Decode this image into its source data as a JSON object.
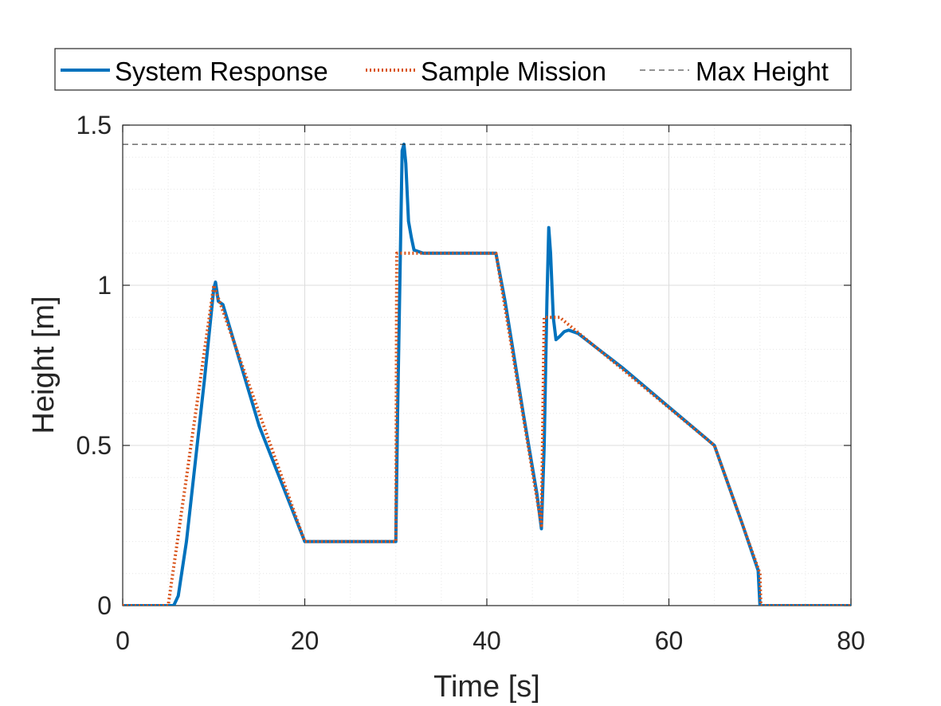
{
  "chart_data": {
    "type": "line",
    "xlabel": "Time [s]",
    "ylabel": "Height [m]",
    "xlim": [
      0,
      80
    ],
    "ylim": [
      0,
      1.5
    ],
    "x_ticks": [
      "0",
      "20",
      "40",
      "60",
      "80"
    ],
    "y_ticks": [
      "0",
      "0.5",
      "1",
      "1.5"
    ],
    "grid": "on (major and minor)",
    "legend_position": "top, outside, horizontal",
    "series": [
      {
        "name": "System Response",
        "style": "solid",
        "color": "#0072BD",
        "x": [
          0,
          5.6,
          6.1,
          7,
          9,
          10,
          10.2,
          10.5,
          11,
          15,
          20,
          25,
          30,
          30.2,
          30.5,
          30.7,
          30.9,
          31.1,
          31.4,
          31.7,
          32,
          33,
          35,
          38,
          41,
          41.2,
          42,
          44,
          45.5,
          46,
          46.3,
          46.6,
          46.8,
          47,
          47.3,
          47.6,
          48,
          48.5,
          49,
          50,
          55,
          60,
          65,
          66,
          68,
          69.8,
          70,
          70.3,
          75,
          80
        ],
        "y": [
          0,
          0,
          0.03,
          0.2,
          0.71,
          0.99,
          1.01,
          0.95,
          0.94,
          0.56,
          0.2,
          0.2,
          0.2,
          0.6,
          1.1,
          1.42,
          1.44,
          1.38,
          1.2,
          1.15,
          1.11,
          1.1,
          1.1,
          1.1,
          1.1,
          1.07,
          0.95,
          0.6,
          0.35,
          0.24,
          0.5,
          0.95,
          1.18,
          1.1,
          0.9,
          0.83,
          0.84,
          0.855,
          0.86,
          0.85,
          0.74,
          0.62,
          0.5,
          0.42,
          0.26,
          0.11,
          0,
          0,
          0,
          0
        ]
      },
      {
        "name": "Sample Mission",
        "style": "dotted",
        "color": "#D95319",
        "x": [
          0,
          5,
          10,
          20,
          30,
          30.1,
          41,
          46,
          46.3,
          48,
          65,
          70,
          70.1,
          80
        ],
        "y": [
          0,
          0,
          1,
          0.2,
          0.2,
          1.1,
          1.1,
          0.25,
          0.9,
          0.9,
          0.5,
          0.1,
          0,
          0
        ]
      },
      {
        "name": "Max Height",
        "style": "dashed",
        "color": "#262626",
        "x": [
          0,
          80
        ],
        "y": [
          1.44,
          1.44
        ]
      }
    ]
  }
}
